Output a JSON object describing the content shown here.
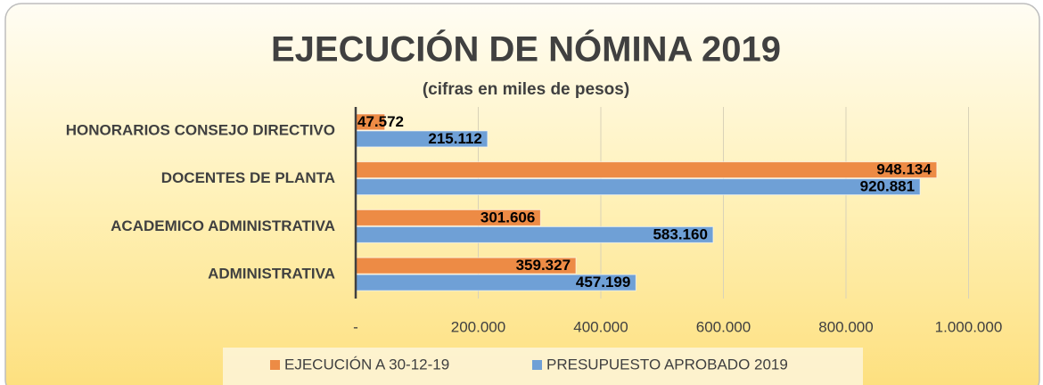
{
  "chart_data": {
    "type": "hbar",
    "title": "EJECUCIÓN DE NÓMINA 2019",
    "subtitle": "(cifras en miles de pesos)",
    "categories": [
      "HONORARIOS CONSEJO DIRECTIVO",
      "DOCENTES DE PLANTA",
      "ACADEMICO ADMINISTRATIVA",
      "ADMINISTRATIVA"
    ],
    "series": [
      {
        "name": "EJECUCIÓN A 30-12-19",
        "color": "#ed8b45",
        "values": [
          47572,
          948134,
          301606,
          359327
        ],
        "value_labels": [
          "47.572",
          "948.134",
          "301.606",
          "359.327"
        ]
      },
      {
        "name": "PRESUPUESTO APROBADO 2019",
        "color": "#6fa0d6",
        "values": [
          215112,
          920881,
          583160,
          457199
        ],
        "value_labels": [
          "215.112",
          "920.881",
          "583.160",
          "457.199"
        ]
      }
    ],
    "xlim": [
      0,
      1000000
    ],
    "xticks": [
      {
        "value": 0,
        "label": "-"
      },
      {
        "value": 200000,
        "label": "200.000"
      },
      {
        "value": 400000,
        "label": "400.000"
      },
      {
        "value": 600000,
        "label": "600.000"
      },
      {
        "value": 800000,
        "label": "800.000"
      },
      {
        "value": 1000000,
        "label": "1.000.000"
      }
    ],
    "grid": true,
    "legend": "bottom"
  }
}
